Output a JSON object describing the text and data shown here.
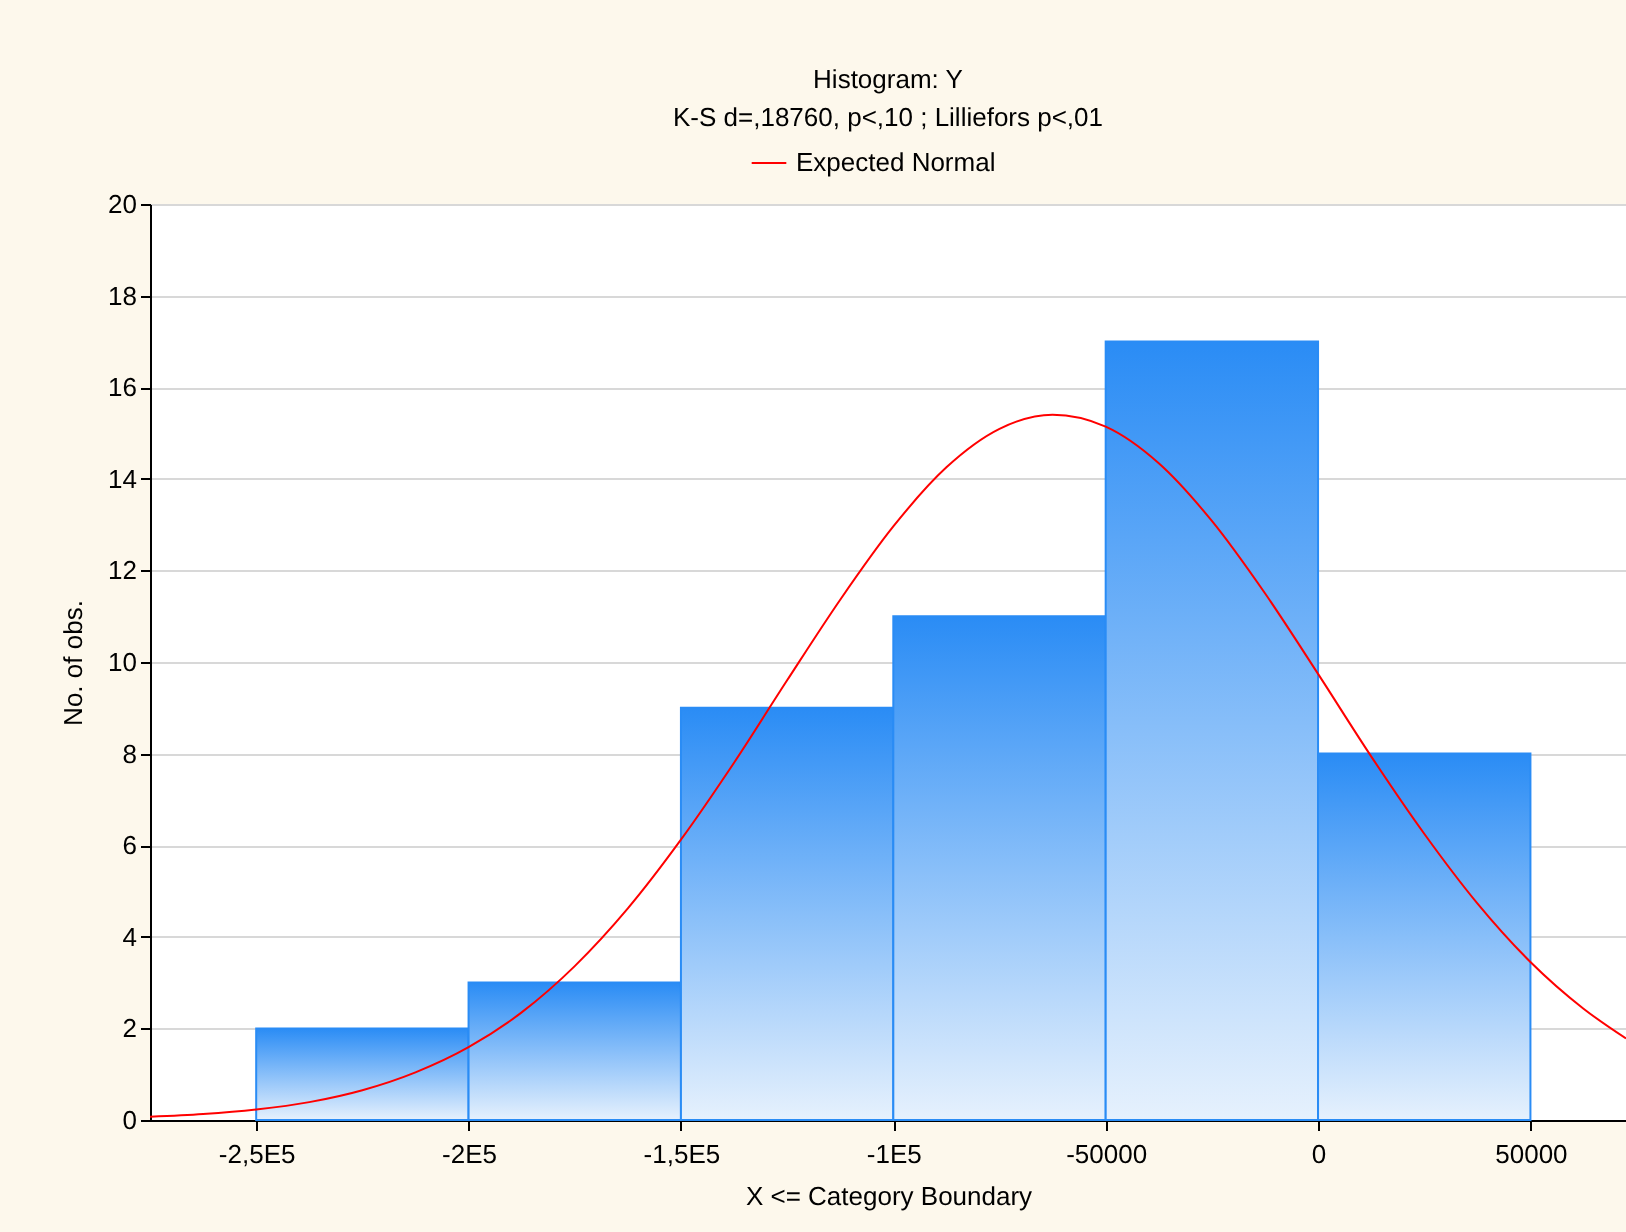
{
  "chart_data": {
    "type": "histogram",
    "title": "Histogram: Y",
    "subtitle": "K-S d=,18760, p<,10 ; Lilliefors p<,01",
    "xlabel": "X <= Category Boundary",
    "ylabel": "No. of obs.",
    "bins": [
      -250000,
      -200000,
      -150000,
      -100000,
      -50000,
      0,
      50000
    ],
    "values": [
      2,
      3,
      9,
      11,
      17,
      8
    ],
    "color": "#2a8cf5",
    "series": [
      {
        "name": "Expected Normal",
        "type": "line",
        "color": "#ff0000",
        "x": [
          -275000,
          -262500,
          -250000,
          -237500,
          -225000,
          -212500,
          -200000,
          -187500,
          -175000,
          -162500,
          -150000,
          -137500,
          -125000,
          -112500,
          -100000,
          -87500,
          -75000,
          -62500,
          -50000,
          -37500,
          -25000,
          -12500,
          0,
          12500,
          25000,
          37500,
          50000,
          62500,
          72500
        ],
        "values": [
          0.07,
          0.13,
          0.23,
          0.39,
          0.65,
          1.04,
          1.59,
          2.35,
          3.36,
          4.62,
          6.12,
          7.8,
          9.6,
          11.36,
          12.96,
          14.25,
          15.09,
          15.4,
          15.14,
          14.34,
          13.08,
          11.5,
          9.74,
          7.94,
          6.25,
          4.73,
          3.45,
          2.43,
          1.78
        ]
      }
    ],
    "xlim": [
      -275000,
      72500
    ],
    "xticks": [
      {
        "value": -250000,
        "label": "-2,5E5"
      },
      {
        "value": -200000,
        "label": "-2E5"
      },
      {
        "value": -150000,
        "label": "-1,5E5"
      },
      {
        "value": -100000,
        "label": "-1E5"
      },
      -50000,
      0,
      50000
    ],
    "ylim": [
      0,
      20
    ],
    "yticks": [
      0,
      2,
      4,
      6,
      8,
      10,
      12,
      14,
      16,
      18,
      20
    ],
    "grid": "y",
    "legend": "top"
  }
}
